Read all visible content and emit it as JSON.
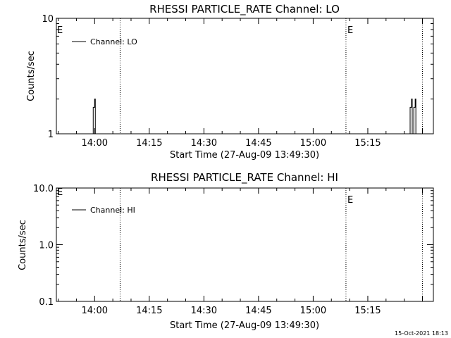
{
  "chart_data": [
    {
      "type": "line",
      "title": "RHESSI PARTICLE_RATE Channel: LO",
      "xlabel": "Start Time (27-Aug-09 13:49:30)",
      "ylabel": "Counts/sec",
      "yscale": "log",
      "ylim": [
        1,
        10
      ],
      "y_ticks": [
        {
          "value": 1,
          "label": "1"
        },
        {
          "value": 10,
          "label": "10"
        }
      ],
      "xlim": [
        "13:49:30",
        "15:33:00"
      ],
      "x_ticks": [
        "14:00",
        "14:15",
        "14:30",
        "14:45",
        "15:00",
        "15:15"
      ],
      "legend": {
        "position": "top-left",
        "entries": [
          "Channel: LO"
        ]
      },
      "vertical_lines": [
        {
          "time": "14:07:00",
          "label": ""
        },
        {
          "time": "15:09:00",
          "label": "E"
        },
        {
          "time": "15:30:00",
          "label": ""
        }
      ],
      "left_edge_marker": "E",
      "series": [
        {
          "name": "Channel: LO",
          "spikes": [
            {
              "time": "14:00:00",
              "value": 2.0
            },
            {
              "time": "15:27:00",
              "value": 2.0
            },
            {
              "time": "15:28:00",
              "value": 2.0
            }
          ]
        }
      ]
    },
    {
      "type": "line",
      "title": "RHESSI PARTICLE_RATE Channel: HI",
      "xlabel": "Start Time (27-Aug-09 13:49:30)",
      "ylabel": "Counts/sec",
      "yscale": "log",
      "ylim": [
        0.1,
        10
      ],
      "y_ticks": [
        {
          "value": 0.1,
          "label": "0.1"
        },
        {
          "value": 1,
          "label": "1.0"
        },
        {
          "value": 10,
          "label": "10.0"
        }
      ],
      "xlim": [
        "13:49:30",
        "15:33:00"
      ],
      "x_ticks": [
        "14:00",
        "14:15",
        "14:30",
        "14:45",
        "15:00",
        "15:15"
      ],
      "legend": {
        "position": "top-left",
        "entries": [
          "Channel: HI"
        ]
      },
      "vertical_lines": [
        {
          "time": "14:07:00",
          "label": ""
        },
        {
          "time": "15:09:00",
          "label": "E"
        },
        {
          "time": "15:30:00",
          "label": ""
        }
      ],
      "left_edge_marker": "E",
      "series": [
        {
          "name": "Channel: HI",
          "spikes": []
        }
      ]
    }
  ],
  "footer": {
    "timestamp": "15-Oct-2021 18:13"
  }
}
